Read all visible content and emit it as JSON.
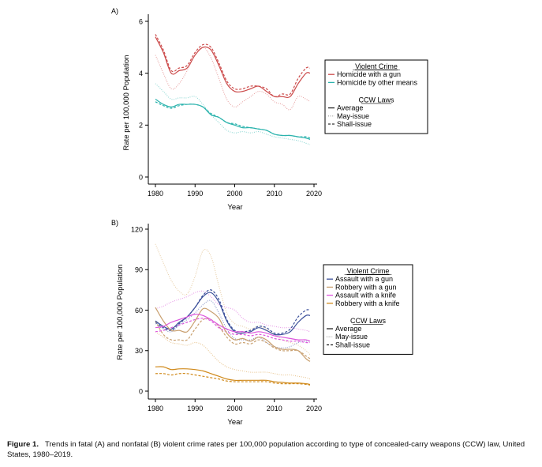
{
  "caption": {
    "label": "Figure 1.",
    "text": "Trends in fatal (A) and nonfatal (B) violent crime rates per 100,000 population according to type of concealed-carry weapons (CCW) law, United States, 1980–2019."
  },
  "chart_data": [
    {
      "panel": "A)",
      "type": "line",
      "title": "",
      "xlabel": "Year",
      "ylabel": "Rate per 100,000 Population",
      "xlim": [
        1980,
        2020
      ],
      "ylim": [
        0,
        6
      ],
      "xticks": [
        1980,
        1990,
        2000,
        2010,
        2020
      ],
      "yticks": [
        0,
        2,
        4,
        6
      ],
      "grid": false,
      "legend": {
        "placement": "right",
        "crime_title": "Violent Crime",
        "crime_entries": [
          {
            "label": "Homicide with a gun",
            "color": "#cc4b4b"
          },
          {
            "label": "Homicide by other means",
            "color": "#2bb3ad"
          }
        ],
        "law_title": "CCW Laws",
        "law_entries": [
          {
            "label": "Average",
            "style": "solid"
          },
          {
            "label": "May-issue",
            "style": "dotted"
          },
          {
            "label": "Shall-issue",
            "style": "dashed"
          }
        ]
      },
      "x": [
        1980,
        1982,
        1984,
        1986,
        1988,
        1990,
        1992,
        1994,
        1996,
        1998,
        2000,
        2002,
        2004,
        2006,
        2008,
        2010,
        2012,
        2014,
        2016,
        2018,
        2019
      ],
      "series": [
        {
          "name": "Homicide with a gun — Average",
          "color": "#cc4b4b",
          "style": "solid",
          "values": [
            5.4,
            4.8,
            4.0,
            4.1,
            4.2,
            4.7,
            5.0,
            4.9,
            4.3,
            3.6,
            3.3,
            3.3,
            3.4,
            3.5,
            3.3,
            3.1,
            3.1,
            3.1,
            3.6,
            4.0,
            4.0
          ]
        },
        {
          "name": "Homicide with a gun — May-issue",
          "color": "#e8a3a3",
          "style": "dotted",
          "values": [
            4.7,
            4.0,
            3.4,
            3.6,
            4.1,
            4.7,
            5.0,
            4.6,
            3.8,
            3.0,
            2.7,
            2.9,
            3.1,
            3.3,
            3.2,
            2.9,
            2.8,
            2.6,
            3.1,
            3.0,
            2.9
          ]
        },
        {
          "name": "Homicide with a gun — Shall-issue",
          "color": "#cc4b4b",
          "style": "dashed",
          "values": [
            5.5,
            4.9,
            4.1,
            4.2,
            4.3,
            4.8,
            5.1,
            5.0,
            4.4,
            3.7,
            3.4,
            3.4,
            3.5,
            3.5,
            3.4,
            3.1,
            3.2,
            3.2,
            3.8,
            4.2,
            4.2
          ]
        },
        {
          "name": "Homicide by other means — Average",
          "color": "#2bb3ad",
          "style": "solid",
          "values": [
            3.0,
            2.8,
            2.7,
            2.8,
            2.8,
            2.8,
            2.7,
            2.4,
            2.3,
            2.1,
            2.0,
            1.9,
            1.9,
            1.85,
            1.8,
            1.65,
            1.6,
            1.6,
            1.55,
            1.5,
            1.45
          ]
        },
        {
          "name": "Homicide by other means — May-issue",
          "color": "#8fd8d4",
          "style": "dotted",
          "values": [
            3.6,
            3.3,
            3.0,
            3.05,
            3.05,
            3.1,
            2.8,
            2.4,
            2.1,
            1.8,
            1.7,
            1.75,
            1.7,
            1.75,
            1.65,
            1.55,
            1.5,
            1.45,
            1.4,
            1.3,
            1.25
          ]
        },
        {
          "name": "Homicide by other means — Shall-issue",
          "color": "#2bb3ad",
          "style": "dashed",
          "values": [
            2.9,
            2.75,
            2.65,
            2.75,
            2.8,
            2.8,
            2.7,
            2.45,
            2.3,
            2.1,
            2.05,
            1.95,
            1.9,
            1.85,
            1.8,
            1.65,
            1.6,
            1.6,
            1.55,
            1.55,
            1.5
          ]
        }
      ]
    },
    {
      "panel": "B)",
      "type": "line",
      "title": "",
      "xlabel": "Year",
      "ylabel": "Rate per 100,000 Population",
      "xlim": [
        1980,
        2020
      ],
      "ylim": [
        0,
        120
      ],
      "xticks": [
        1980,
        1990,
        2000,
        2010,
        2020
      ],
      "yticks": [
        0,
        30,
        60,
        90,
        120
      ],
      "grid": false,
      "legend": {
        "placement": "right",
        "crime_title": "Violent Crime",
        "crime_entries": [
          {
            "label": "Assault with a gun",
            "color": "#3b4f9a"
          },
          {
            "label": "Robbery with a gun",
            "color": "#c9a070"
          },
          {
            "label": "Assault with a knife",
            "color": "#dd55dd"
          },
          {
            "label": "Robbery with a knife",
            "color": "#d08a1c"
          }
        ],
        "law_title": "CCW Laws",
        "law_entries": [
          {
            "label": "Average",
            "style": "solid"
          },
          {
            "label": "May-issue",
            "style": "dotted"
          },
          {
            "label": "Shall-issue",
            "style": "dashed"
          }
        ]
      },
      "x": [
        1980,
        1982,
        1984,
        1986,
        1988,
        1990,
        1992,
        1994,
        1996,
        1998,
        2000,
        2002,
        2004,
        2006,
        2008,
        2010,
        2012,
        2014,
        2016,
        2018,
        2019
      ],
      "series": [
        {
          "name": "Assault with a gun — Average",
          "color": "#3b4f9a",
          "style": "solid",
          "values": [
            52,
            48,
            46,
            51,
            55,
            62,
            70,
            73,
            66,
            52,
            44,
            43,
            44,
            47,
            45,
            42,
            42,
            44,
            51,
            56,
            56
          ]
        },
        {
          "name": "Assault with a gun — May-issue",
          "color": "#8a97c8",
          "style": "dotted",
          "values": [
            50,
            46,
            44,
            49,
            53,
            58,
            64,
            67,
            58,
            46,
            39,
            38,
            38,
            40,
            36,
            33,
            32,
            33,
            36,
            37,
            37
          ]
        },
        {
          "name": "Assault with a gun — Shall-issue",
          "color": "#3b4f9a",
          "style": "dashed",
          "values": [
            51,
            47,
            45,
            50,
            55,
            62,
            71,
            75,
            68,
            53,
            45,
            44,
            45,
            48,
            47,
            43,
            43,
            46,
            55,
            60,
            60
          ]
        },
        {
          "name": "Robbery with a gun — Average",
          "color": "#c9a070",
          "style": "solid",
          "values": [
            62,
            52,
            45,
            45,
            44,
            52,
            61,
            59,
            54,
            43,
            38,
            39,
            37,
            40,
            38,
            33,
            31,
            31,
            30,
            24,
            22
          ]
        },
        {
          "name": "Robbery with a gun — May-issue",
          "color": "#e8cfa8",
          "style": "dotted",
          "values": [
            109,
            95,
            82,
            74,
            72,
            85,
            104,
            100,
            78,
            58,
            50,
            48,
            46,
            48,
            46,
            42,
            38,
            36,
            34,
            30,
            27
          ]
        },
        {
          "name": "Robbery with a gun — Shall-issue",
          "color": "#c9a070",
          "style": "dashed",
          "values": [
            52,
            42,
            38,
            38,
            38,
            46,
            53,
            53,
            48,
            40,
            35,
            36,
            35,
            38,
            36,
            32,
            30,
            30,
            30,
            26,
            24
          ]
        },
        {
          "name": "Assault with a knife — Average",
          "color": "#dd55dd",
          "style": "solid",
          "values": [
            47,
            48,
            51,
            53,
            55,
            57,
            56,
            53,
            49,
            46,
            44,
            44,
            43,
            44,
            43,
            41,
            40,
            39,
            38,
            38,
            37
          ]
        },
        {
          "name": "Assault with a knife — May-issue",
          "color": "#e89ce8",
          "style": "dotted",
          "values": [
            61,
            63,
            66,
            68,
            70,
            73,
            74,
            70,
            64,
            62,
            60,
            54,
            51,
            51,
            49,
            48,
            47,
            47,
            46,
            45,
            44
          ]
        },
        {
          "name": "Assault with a knife — Shall-issue",
          "color": "#dd55dd",
          "style": "dashed",
          "values": [
            44,
            45,
            47,
            49,
            51,
            53,
            54,
            52,
            47,
            44,
            42,
            42,
            41,
            42,
            41,
            39,
            38,
            37,
            37,
            36,
            36
          ]
        },
        {
          "name": "Robbery with a knife — Average",
          "color": "#d08a1c",
          "style": "solid",
          "values": [
            18,
            18,
            16,
            16.5,
            16.5,
            16,
            15,
            13,
            11,
            9,
            8,
            8,
            8,
            8,
            8,
            7,
            6.5,
            6,
            6,
            5.5,
            5
          ]
        },
        {
          "name": "Robbery with a knife — May-issue",
          "color": "#e8c590",
          "style": "dotted",
          "values": [
            44,
            40,
            36,
            35,
            34,
            36,
            34,
            28,
            22,
            18,
            16,
            15,
            14,
            14,
            14,
            13,
            12,
            12,
            11,
            10,
            9
          ]
        },
        {
          "name": "Robbery with a knife — Shall-issue",
          "color": "#d08a1c",
          "style": "dashed",
          "values": [
            13,
            13,
            12,
            13,
            13,
            12,
            11,
            10,
            9,
            7.5,
            7,
            7,
            7,
            7,
            7,
            6,
            5.5,
            5.5,
            5.5,
            5,
            4.5
          ]
        }
      ]
    }
  ]
}
